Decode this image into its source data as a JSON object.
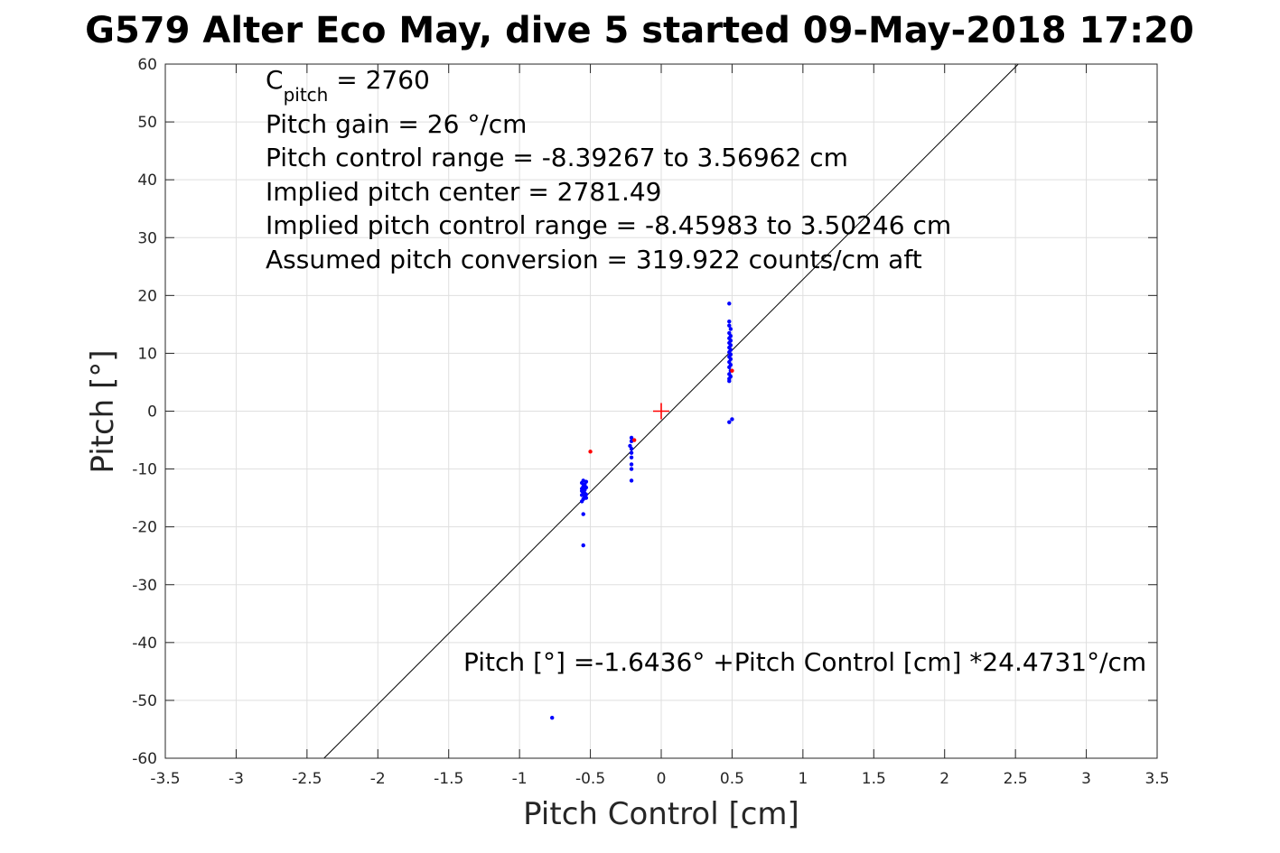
{
  "chart_data": {
    "type": "scatter",
    "title": "G579 Alter Eco May, dive 5 started 09-May-2018 17:20",
    "xlabel": "Pitch Control [cm]",
    "ylabel": "Pitch [°]",
    "xlim": [
      -3.5,
      3.5
    ],
    "ylim": [
      -60,
      60
    ],
    "xticks": [
      -3.5,
      -3,
      -2.5,
      -2,
      -1.5,
      -1,
      -0.5,
      0,
      0.5,
      1,
      1.5,
      2,
      2.5,
      3,
      3.5
    ],
    "xtick_labels": [
      "-3.5",
      "-3",
      "-2.5",
      "-2",
      "-1.5",
      "-1",
      "-0.5",
      "0",
      "0.5",
      "1",
      "1.5",
      "2",
      "2.5",
      "3",
      "3.5"
    ],
    "yticks": [
      -60,
      -50,
      -40,
      -30,
      -20,
      -10,
      0,
      10,
      20,
      30,
      40,
      50,
      60
    ],
    "ytick_labels": [
      "-60",
      "-50",
      "-40",
      "-30",
      "-20",
      "-10",
      "0",
      "10",
      "20",
      "30",
      "40",
      "50",
      "60"
    ],
    "grid": true,
    "series": [
      {
        "color": "#0000ff",
        "marker": "dot",
        "points": [
          [
            -0.77,
            -53
          ],
          [
            -0.55,
            -23.2
          ],
          [
            -0.55,
            -17.8
          ],
          [
            -0.56,
            -15.6
          ],
          [
            -0.55,
            -15.2
          ],
          [
            -0.54,
            -14.8
          ],
          [
            -0.56,
            -14.5
          ],
          [
            -0.53,
            -14.4
          ],
          [
            -0.55,
            -14.0
          ],
          [
            -0.54,
            -13.6
          ],
          [
            -0.56,
            -13.4
          ],
          [
            -0.53,
            -13.2
          ],
          [
            -0.55,
            -13.0
          ],
          [
            -0.54,
            -12.7
          ],
          [
            -0.56,
            -12.4
          ],
          [
            -0.53,
            -12.2
          ],
          [
            -0.55,
            -12.0
          ],
          [
            -0.54,
            -14.2
          ],
          [
            -0.56,
            -13.8
          ],
          [
            -0.53,
            -15.0
          ],
          [
            -0.21,
            -12.0
          ],
          [
            -0.21,
            -10.0
          ],
          [
            -0.21,
            -9.2
          ],
          [
            -0.21,
            -8.0
          ],
          [
            -0.21,
            -7.2
          ],
          [
            -0.21,
            -6.5
          ],
          [
            -0.22,
            -6.0
          ],
          [
            -0.21,
            -5.2
          ],
          [
            -0.21,
            -4.6
          ],
          [
            0.48,
            18.6
          ],
          [
            0.48,
            15.5
          ],
          [
            0.48,
            14.8
          ],
          [
            0.49,
            14.2
          ],
          [
            0.48,
            13.5
          ],
          [
            0.49,
            13.0
          ],
          [
            0.48,
            12.6
          ],
          [
            0.49,
            12.2
          ],
          [
            0.48,
            11.8
          ],
          [
            0.49,
            11.4
          ],
          [
            0.48,
            11.0
          ],
          [
            0.49,
            10.6
          ],
          [
            0.48,
            10.2
          ],
          [
            0.49,
            9.8
          ],
          [
            0.48,
            9.4
          ],
          [
            0.49,
            9.0
          ],
          [
            0.48,
            8.5
          ],
          [
            0.49,
            8.0
          ],
          [
            0.48,
            7.6
          ],
          [
            0.49,
            7.0
          ],
          [
            0.48,
            6.4
          ],
          [
            0.49,
            6.0
          ],
          [
            0.48,
            5.6
          ],
          [
            0.48,
            5.2
          ],
          [
            0.48,
            -1.9
          ],
          [
            0.5,
            -1.4
          ]
        ]
      },
      {
        "color": "#ff0000",
        "marker": "dot",
        "points": [
          [
            -0.5,
            -7.0
          ],
          [
            -0.19,
            -5.0
          ],
          [
            0.5,
            7.0
          ]
        ]
      },
      {
        "color": "#ff0000",
        "marker": "plus",
        "points": [
          [
            0,
            0
          ]
        ]
      },
      {
        "color": "#000000",
        "marker": "line",
        "line": [
          [
            -2.38,
            -60
          ],
          [
            2.52,
            60
          ]
        ]
      }
    ],
    "annotations": {
      "c_pitch_main": "C",
      "c_pitch_sub": "pitch",
      "c_pitch_value": " = 2760",
      "pitch_gain": "Pitch gain = 26 °/cm",
      "control_range": "Pitch control range = -8.39267 to 3.56962 cm",
      "implied_center": "Implied pitch center = 2781.49",
      "implied_range": "Implied pitch control range = -8.45983 to 3.50246 cm",
      "conversion": "Assumed pitch conversion = 319.922 counts/cm aft",
      "fit_equation": "Pitch [°] =-1.6436° +Pitch Control [cm] *24.4731°/cm"
    }
  }
}
